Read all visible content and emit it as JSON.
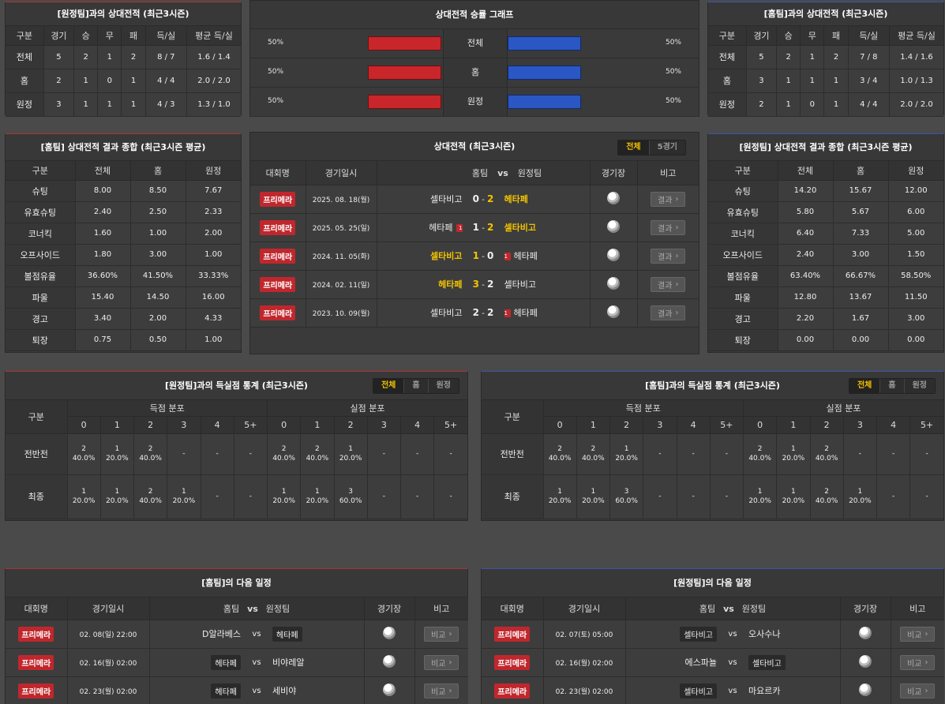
{
  "away_h2h": {
    "title": "[원정팀]과의 상대전적 (최근3시즌)",
    "headers": [
      "구분",
      "경기",
      "승",
      "무",
      "패",
      "득/실",
      "평균 득/실"
    ],
    "rows": [
      [
        "전체",
        "5",
        "2",
        "1",
        "2",
        "8 / 7",
        "1.6 / 1.4"
      ],
      [
        "홈",
        "2",
        "1",
        "0",
        "1",
        "4 / 4",
        "2.0 / 2.0"
      ],
      [
        "원정",
        "3",
        "1",
        "1",
        "1",
        "4 / 3",
        "1.3 / 1.0"
      ]
    ]
  },
  "graph": {
    "title": "상대전적 승률 그래프",
    "rows": [
      {
        "label": "전체",
        "left": "50%",
        "right": "50%",
        "home_pct": 50,
        "away_pct": 50
      },
      {
        "label": "홈",
        "left": "50%",
        "right": "50%",
        "home_pct": 50,
        "away_pct": 50
      },
      {
        "label": "원정",
        "left": "50%",
        "right": "50%",
        "home_pct": 50,
        "away_pct": 50
      }
    ],
    "colors": {
      "home": "#c8262b",
      "away": "#2a57c4"
    }
  },
  "home_h2h": {
    "title": "[홈팀]과의 상대전적 (최근3시즌)",
    "headers": [
      "구분",
      "경기",
      "승",
      "무",
      "패",
      "득/실",
      "평균 득/실"
    ],
    "rows": [
      [
        "전체",
        "5",
        "2",
        "1",
        "2",
        "7 / 8",
        "1.4 / 1.6"
      ],
      [
        "홈",
        "3",
        "1",
        "1",
        "1",
        "3 / 4",
        "1.0 / 1.3"
      ],
      [
        "원정",
        "2",
        "1",
        "0",
        "1",
        "4 / 4",
        "2.0 / 2.0"
      ]
    ]
  },
  "home_summary": {
    "title": "[홈팀] 상대전적 결과 종합 (최근3시즌 평균)",
    "headers": [
      "구분",
      "전체",
      "홈",
      "원정"
    ],
    "rows": [
      [
        "슈팅",
        "8.00",
        "8.50",
        "7.67"
      ],
      [
        "유효슈팅",
        "2.40",
        "2.50",
        "2.33"
      ],
      [
        "코너킥",
        "1.60",
        "1.00",
        "2.00"
      ],
      [
        "오프사이드",
        "1.80",
        "3.00",
        "1.00"
      ],
      [
        "볼점유율",
        "36.60%",
        "41.50%",
        "33.33%"
      ],
      [
        "파울",
        "15.40",
        "14.50",
        "16.00"
      ],
      [
        "경고",
        "3.40",
        "2.00",
        "4.33"
      ],
      [
        "퇴장",
        "0.75",
        "0.50",
        "1.00"
      ]
    ]
  },
  "away_summary": {
    "title": "[원정팀] 상대전적 결과 종합 (최근3시즌 평균)",
    "headers": [
      "구분",
      "전체",
      "홈",
      "원정"
    ],
    "rows": [
      [
        "슈팅",
        "14.20",
        "15.67",
        "12.00"
      ],
      [
        "유효슈팅",
        "5.80",
        "5.67",
        "6.00"
      ],
      [
        "코너킥",
        "6.40",
        "7.33",
        "5.00"
      ],
      [
        "오프사이드",
        "2.40",
        "3.00",
        "1.50"
      ],
      [
        "볼점유율",
        "63.40%",
        "66.67%",
        "58.50%"
      ],
      [
        "파울",
        "12.80",
        "13.67",
        "11.50"
      ],
      [
        "경고",
        "2.20",
        "1.67",
        "3.00"
      ],
      [
        "퇴장",
        "0.00",
        "0.00",
        "0.00"
      ]
    ]
  },
  "h2h_matches": {
    "title": "상대전적 (최근3시즌)",
    "tabs": [
      "전체",
      "5경기"
    ],
    "headers": {
      "league": "대회명",
      "date": "경기일시",
      "home": "홈팀",
      "vs": "vs",
      "away": "원정팀",
      "venue": "경기장",
      "note": "비고"
    },
    "result_label": "결과",
    "rows": [
      {
        "league": "프리메라",
        "date": "2025. 08. 18(월)",
        "home": "셀타비고",
        "hs": "0",
        "as": "2",
        "away": "헤타페",
        "win": "away",
        "hred": "",
        "ared": ""
      },
      {
        "league": "프리메라",
        "date": "2025. 05. 25(일)",
        "home": "헤타페",
        "hs": "1",
        "as": "2",
        "away": "셀타비고",
        "win": "away",
        "hred": "1",
        "ared": ""
      },
      {
        "league": "프리메라",
        "date": "2024. 11. 05(화)",
        "home": "셀타비고",
        "hs": "1",
        "as": "0",
        "away": "헤타페",
        "win": "home",
        "hred": "",
        "ared": "1"
      },
      {
        "league": "프리메라",
        "date": "2024. 02. 11(일)",
        "home": "헤타페",
        "hs": "3",
        "as": "2",
        "away": "셀타비고",
        "win": "home",
        "hred": "",
        "ared": ""
      },
      {
        "league": "프리메라",
        "date": "2023. 10. 09(월)",
        "home": "셀타비고",
        "hs": "2",
        "as": "2",
        "away": "헤타페",
        "win": "draw",
        "hred": "",
        "ared": "1"
      }
    ]
  },
  "away_goals": {
    "title": "[원정팀]과의 득실점 통계 (최근3시즌)",
    "tabs": [
      "전체",
      "홈",
      "원정"
    ],
    "gubun": "구분",
    "scored": "득점 분포",
    "conceded": "실점 분포",
    "cols": [
      "0",
      "1",
      "2",
      "3",
      "4",
      "5+"
    ],
    "rows": [
      {
        "label": "전반전",
        "scored": [
          [
            "2",
            "40.0%"
          ],
          [
            "1",
            "20.0%"
          ],
          [
            "2",
            "40.0%"
          ],
          [
            "-",
            ""
          ],
          [
            "-",
            ""
          ],
          [
            "-",
            ""
          ]
        ],
        "conceded": [
          [
            "2",
            "40.0%"
          ],
          [
            "2",
            "40.0%"
          ],
          [
            "1",
            "20.0%"
          ],
          [
            "-",
            ""
          ],
          [
            "-",
            ""
          ],
          [
            "-",
            ""
          ]
        ]
      },
      {
        "label": "최종",
        "scored": [
          [
            "1",
            "20.0%"
          ],
          [
            "1",
            "20.0%"
          ],
          [
            "2",
            "40.0%"
          ],
          [
            "1",
            "20.0%"
          ],
          [
            "-",
            ""
          ],
          [
            "-",
            ""
          ]
        ],
        "conceded": [
          [
            "1",
            "20.0%"
          ],
          [
            "1",
            "20.0%"
          ],
          [
            "3",
            "60.0%"
          ],
          [
            "-",
            ""
          ],
          [
            "-",
            ""
          ],
          [
            "-",
            ""
          ]
        ]
      }
    ]
  },
  "home_goals": {
    "title": "[홈팀]과의 득실점 통계 (최근3시즌)",
    "tabs": [
      "전체",
      "홈",
      "원정"
    ],
    "gubun": "구분",
    "scored": "득점 분포",
    "conceded": "실점 분포",
    "cols": [
      "0",
      "1",
      "2",
      "3",
      "4",
      "5+"
    ],
    "rows": [
      {
        "label": "전반전",
        "scored": [
          [
            "2",
            "40.0%"
          ],
          [
            "2",
            "40.0%"
          ],
          [
            "1",
            "20.0%"
          ],
          [
            "-",
            ""
          ],
          [
            "-",
            ""
          ],
          [
            "-",
            ""
          ]
        ],
        "conceded": [
          [
            "2",
            "40.0%"
          ],
          [
            "1",
            "20.0%"
          ],
          [
            "2",
            "40.0%"
          ],
          [
            "-",
            ""
          ],
          [
            "-",
            ""
          ],
          [
            "-",
            ""
          ]
        ]
      },
      {
        "label": "최종",
        "scored": [
          [
            "1",
            "20.0%"
          ],
          [
            "1",
            "20.0%"
          ],
          [
            "3",
            "60.0%"
          ],
          [
            "-",
            ""
          ],
          [
            "-",
            ""
          ],
          [
            "-",
            ""
          ]
        ],
        "conceded": [
          [
            "1",
            "20.0%"
          ],
          [
            "1",
            "20.0%"
          ],
          [
            "2",
            "40.0%"
          ],
          [
            "1",
            "20.0%"
          ],
          [
            "-",
            ""
          ],
          [
            "-",
            ""
          ]
        ]
      }
    ]
  },
  "home_next": {
    "title": "[홈팀]의 다음 일정",
    "headers": {
      "league": "대회명",
      "date": "경기일시",
      "home": "홈팀",
      "vs": "vs",
      "away": "원정팀",
      "venue": "경기장",
      "note": "비고"
    },
    "note_label": "비교",
    "rows": [
      {
        "league": "프리메라",
        "date": "02. 08(일) 22:00",
        "home": "D알라베스",
        "away": "헤타페",
        "box": "away"
      },
      {
        "league": "프리메라",
        "date": "02. 16(월) 02:00",
        "home": "헤타페",
        "away": "비야레알",
        "box": "home"
      },
      {
        "league": "프리메라",
        "date": "02. 23(월) 02:00",
        "home": "헤타페",
        "away": "세비야",
        "box": "home"
      }
    ]
  },
  "away_next": {
    "title": "[원정팀]의 다음 일정",
    "headers": {
      "league": "대회명",
      "date": "경기일시",
      "home": "홈팀",
      "vs": "vs",
      "away": "원정팀",
      "venue": "경기장",
      "note": "비고"
    },
    "note_label": "비교",
    "rows": [
      {
        "league": "프리메라",
        "date": "02. 07(토) 05:00",
        "home": "셀타비고",
        "away": "오사수나",
        "box": "home"
      },
      {
        "league": "프리메라",
        "date": "02. 16(월) 02:00",
        "home": "에스파뇰",
        "away": "셀타비고",
        "box": "away"
      },
      {
        "league": "프리메라",
        "date": "02. 23(월) 02:00",
        "home": "셀타비고",
        "away": "마요르카",
        "box": "home"
      }
    ]
  }
}
